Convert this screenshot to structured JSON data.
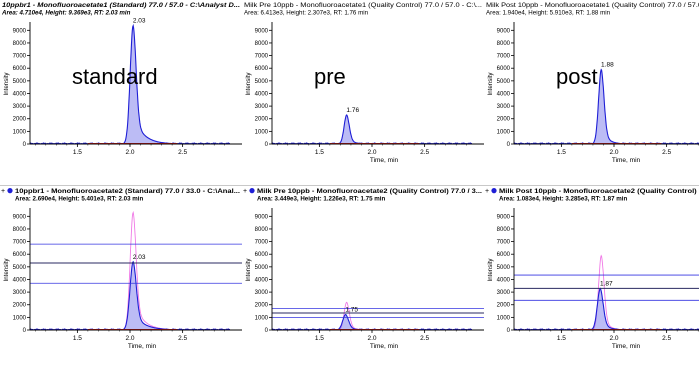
{
  "colors": {
    "primary": "#1f1fd6",
    "fill": "#6a6ae8",
    "secondary": "#f07ae6",
    "threshold": "#3434e0",
    "grid_dark": "#2a2a60",
    "axis": "#000000"
  },
  "panels": [
    {
      "id": "p1",
      "title_line1": "10ppbr1 - Monofluoroacetate1 (Standard) 77.0 / 57.0 - C:\\Analyst D...",
      "title_line2": "Area: 4.710e4, Height: 9.369e3, RT: 2.03 min",
      "title_style": "bold-italic",
      "prefix": "",
      "overlay_text": "standard",
      "ylabel": "Intensity",
      "xlabel": "Time, min",
      "show_xlabel": false,
      "chart_data": {
        "type": "line",
        "xlim": [
          1.05,
          2.95
        ],
        "ylim": [
          0,
          9500
        ],
        "yticks": [
          0,
          1000,
          2000,
          3000,
          4000,
          5000,
          6000,
          7000,
          8000,
          9000
        ],
        "xticks": [
          1.5,
          2.0,
          2.5
        ],
        "peak_label": "2.03",
        "series": [
          {
            "role": "primary",
            "peak_x": 2.03,
            "peak_y": 9369,
            "width": 0.028,
            "tail": 0.09
          }
        ],
        "hlines": []
      }
    },
    {
      "id": "p2",
      "title_line1": "Milk Pre 10ppb - Monofluoroacetate1 (Quality Control) 77.0 / 57.0 - C:\\...",
      "title_line2": "Area: 6.413e3, Height: 2.307e3, RT: 1.76 min",
      "title_style": "normal",
      "prefix": "",
      "overlay_text": "pre",
      "ylabel": "Intensity",
      "xlabel": "Time, min",
      "show_xlabel": true,
      "chart_data": {
        "type": "line",
        "xlim": [
          1.05,
          2.95
        ],
        "ylim": [
          0,
          9500
        ],
        "yticks": [
          0,
          1000,
          2000,
          3000,
          4000,
          5000,
          6000,
          7000,
          8000,
          9000
        ],
        "xticks": [
          1.5,
          2.0,
          2.5
        ],
        "peak_label": "1.76",
        "series": [
          {
            "role": "primary",
            "peak_x": 1.76,
            "peak_y": 2307,
            "width": 0.025,
            "tail": 0.05
          }
        ],
        "hlines": []
      }
    },
    {
      "id": "p3",
      "title_line1": "Milk Post 10ppb - Monofluoroacetate1 (Quality Control) 77.0 / 57.0 - C:\\...",
      "title_line2": "Area: 1.940e4, Height: 5.910e3, RT: 1.88 min",
      "title_style": "normal",
      "prefix": "",
      "overlay_text": "post",
      "ylabel": "Intensity",
      "xlabel": "Time, min",
      "show_xlabel": true,
      "chart_data": {
        "type": "line",
        "xlim": [
          1.05,
          2.95
        ],
        "ylim": [
          0,
          9500
        ],
        "yticks": [
          0,
          1000,
          2000,
          3000,
          4000,
          5000,
          6000,
          7000,
          8000,
          9000
        ],
        "xticks": [
          1.5,
          2.0,
          2.5
        ],
        "peak_label": "1.88",
        "series": [
          {
            "role": "primary",
            "peak_x": 1.88,
            "peak_y": 5910,
            "width": 0.026,
            "tail": 0.05
          }
        ],
        "hlines": []
      }
    },
    {
      "id": "p4",
      "title_line1": "10ppbr1 - Monofluoroacetate2 (Standard) 77.0 / 33.0 - C:\\Anal...",
      "title_line2": "Area: 2.690e4, Height: 5.401e3, RT: 2.03 min",
      "title_style": "bold",
      "prefix": "+ ●",
      "overlay_text": "",
      "ylabel": "Intensity",
      "xlabel": "Time, min",
      "show_xlabel": true,
      "chart_data": {
        "type": "line",
        "xlim": [
          1.05,
          2.95
        ],
        "ylim": [
          0,
          9500
        ],
        "yticks": [
          0,
          1000,
          2000,
          3000,
          4000,
          5000,
          6000,
          7000,
          8000,
          9000
        ],
        "xticks": [
          1.5,
          2.0,
          2.5
        ],
        "peak_label": "2.03",
        "series": [
          {
            "role": "secondary",
            "peak_x": 2.03,
            "peak_y": 9300,
            "width": 0.028,
            "tail": 0.09
          },
          {
            "role": "primary",
            "peak_x": 2.03,
            "peak_y": 5401,
            "width": 0.03,
            "tail": 0.1
          }
        ],
        "hlines": [
          6800,
          5300,
          3700
        ]
      }
    },
    {
      "id": "p5",
      "title_line1": "Milk Pre 10ppb - Monofluoroacetate2 (Quality Control) 77.0 / 3...",
      "title_line2": "Area: 3.449e3, Height: 1.226e3, RT: 1.75 min",
      "title_style": "bold",
      "prefix": "+ ●",
      "overlay_text": "",
      "ylabel": "Intensity",
      "xlabel": "Time, min",
      "show_xlabel": true,
      "chart_data": {
        "type": "line",
        "xlim": [
          1.05,
          2.95
        ],
        "ylim": [
          0,
          9500
        ],
        "yticks": [
          0,
          1000,
          2000,
          3000,
          4000,
          5000,
          6000,
          7000,
          8000,
          9000
        ],
        "xticks": [
          1.5,
          2.0,
          2.5
        ],
        "peak_label": "1.75",
        "series": [
          {
            "role": "secondary",
            "peak_x": 1.76,
            "peak_y": 2200,
            "width": 0.025,
            "tail": 0.05
          },
          {
            "role": "primary",
            "peak_x": 1.75,
            "peak_y": 1226,
            "width": 0.028,
            "tail": 0.06
          }
        ],
        "hlines": [
          1700,
          1350,
          1000
        ]
      }
    },
    {
      "id": "p6",
      "title_line1": "Milk Post 10ppb - Monofluoroacetate2 (Quality Control) 77.0 / 3",
      "title_line2": "Area: 1.083e4, Height: 3.285e3, RT: 1.87 min",
      "title_style": "bold",
      "prefix": "+ ●",
      "overlay_text": "",
      "ylabel": "Intensity",
      "xlabel": "Time, min",
      "show_xlabel": true,
      "chart_data": {
        "type": "line",
        "xlim": [
          1.05,
          2.95
        ],
        "ylim": [
          0,
          9500
        ],
        "yticks": [
          0,
          1000,
          2000,
          3000,
          4000,
          5000,
          6000,
          7000,
          8000,
          9000
        ],
        "xticks": [
          1.5,
          2.0,
          2.5
        ],
        "peak_label": "1.87",
        "series": [
          {
            "role": "secondary",
            "peak_x": 1.88,
            "peak_y": 5900,
            "width": 0.026,
            "tail": 0.05
          },
          {
            "role": "primary",
            "peak_x": 1.87,
            "peak_y": 3285,
            "width": 0.028,
            "tail": 0.06
          }
        ],
        "hlines": [
          4350,
          3300,
          2350
        ]
      }
    }
  ]
}
